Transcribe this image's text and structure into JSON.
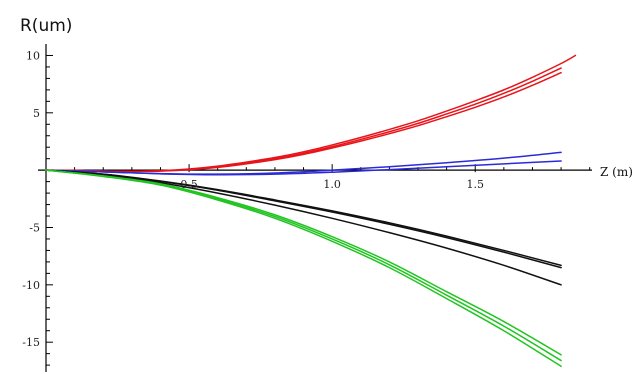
{
  "chart_data": {
    "type": "line",
    "title": "",
    "ylabel": "R(um)",
    "xlabel": "Z (m)",
    "xlim": [
      0,
      1.95
    ],
    "ylim": [
      -17.6,
      11
    ],
    "grid": false,
    "x_ticks": [
      {
        "value": 0.5,
        "label": "0.5"
      },
      {
        "value": 1.0,
        "label": "1.0"
      },
      {
        "value": 1.5,
        "label": "1.5"
      }
    ],
    "x_minor_ticks": [
      0.1,
      0.2,
      0.3,
      0.4,
      0.6,
      0.7,
      0.8,
      0.9,
      1.1,
      1.2,
      1.3,
      1.4,
      1.6,
      1.7,
      1.8,
      1.9
    ],
    "y_ticks": [
      {
        "value": 10,
        "label": "10"
      },
      {
        "value": 5,
        "label": "5"
      },
      {
        "value": -5,
        "label": "-5"
      },
      {
        "value": -10,
        "label": "-10"
      },
      {
        "value": -15,
        "label": "-15"
      }
    ],
    "y_minor_ticks": [
      9,
      8,
      7,
      6,
      4,
      3,
      2,
      1,
      -1,
      -2,
      -3,
      -4,
      -6,
      -7,
      -8,
      -9,
      -11,
      -12,
      -13,
      -14,
      -16,
      -17
    ],
    "series": [
      {
        "color": "#e8141a",
        "x": [
          0,
          0.1,
          0.2,
          0.3,
          0.4,
          0.5,
          0.6,
          0.7,
          0.8,
          0.9,
          1.0,
          1.1,
          1.2,
          1.3,
          1.4,
          1.5,
          1.6,
          1.7,
          1.8,
          1.85
        ],
        "y": [
          0,
          -0.03,
          -0.08,
          -0.1,
          -0.05,
          0.1,
          0.35,
          0.7,
          1.1,
          1.6,
          2.2,
          2.85,
          3.55,
          4.3,
          5.15,
          6.05,
          7.0,
          8.1,
          9.3,
          10.0
        ]
      },
      {
        "color": "#e8141a",
        "x": [
          0,
          0.1,
          0.2,
          0.3,
          0.4,
          0.5,
          0.6,
          0.7,
          0.8,
          0.9,
          1.0,
          1.1,
          1.2,
          1.3,
          1.4,
          1.5,
          1.6,
          1.7,
          1.8
        ],
        "y": [
          0,
          -0.03,
          -0.08,
          -0.1,
          -0.06,
          0.07,
          0.3,
          0.62,
          1.0,
          1.48,
          2.05,
          2.68,
          3.35,
          4.08,
          4.9,
          5.75,
          6.7,
          7.75,
          8.9
        ]
      },
      {
        "color": "#e8141a",
        "x": [
          0,
          0.1,
          0.2,
          0.3,
          0.4,
          0.5,
          0.6,
          0.7,
          0.8,
          0.9,
          1.0,
          1.1,
          1.2,
          1.3,
          1.4,
          1.5,
          1.6,
          1.7,
          1.8
        ],
        "y": [
          0,
          -0.03,
          -0.09,
          -0.11,
          -0.08,
          0.03,
          0.24,
          0.55,
          0.92,
          1.38,
          1.93,
          2.53,
          3.18,
          3.88,
          4.66,
          5.48,
          6.38,
          7.4,
          8.5
        ]
      },
      {
        "color": "#2b2bd6",
        "x": [
          0,
          0.2,
          0.4,
          0.6,
          0.8,
          1.0,
          1.2,
          1.4,
          1.6,
          1.8
        ],
        "y": [
          0,
          -0.15,
          -0.3,
          -0.35,
          -0.25,
          0.0,
          0.3,
          0.65,
          1.05,
          1.55
        ]
      },
      {
        "color": "#2b2bd6",
        "x": [
          0,
          0.2,
          0.4,
          0.6,
          0.8,
          1.0,
          1.2,
          1.4,
          1.6,
          1.8
        ],
        "y": [
          0,
          -0.15,
          -0.32,
          -0.4,
          -0.35,
          -0.18,
          0.05,
          0.3,
          0.55,
          0.8
        ]
      },
      {
        "color": "#111111",
        "x": [
          0,
          0.2,
          0.4,
          0.6,
          0.8,
          1.0,
          1.2,
          1.4,
          1.6,
          1.8
        ],
        "y": [
          0,
          -0.35,
          -0.95,
          -1.7,
          -2.6,
          -3.55,
          -4.6,
          -5.75,
          -7.0,
          -8.3
        ]
      },
      {
        "color": "#111111",
        "x": [
          0,
          0.2,
          0.4,
          0.6,
          0.8,
          1.0,
          1.2,
          1.4,
          1.6,
          1.8
        ],
        "y": [
          0,
          -0.36,
          -0.98,
          -1.75,
          -2.68,
          -3.65,
          -4.72,
          -5.88,
          -7.15,
          -8.5
        ]
      },
      {
        "color": "#111111",
        "x": [
          0,
          0.2,
          0.4,
          0.6,
          0.8,
          1.0,
          1.2,
          1.4,
          1.6,
          1.8
        ],
        "y": [
          0,
          -0.4,
          -1.1,
          -2.0,
          -3.05,
          -4.2,
          -5.45,
          -6.8,
          -8.3,
          -10.0
        ]
      },
      {
        "color": "#22c422",
        "x": [
          0,
          0.2,
          0.4,
          0.6,
          0.8,
          1.0,
          1.2,
          1.4,
          1.6,
          1.8
        ],
        "y": [
          0,
          -0.5,
          -1.2,
          -2.4,
          -3.9,
          -5.8,
          -8.0,
          -10.6,
          -13.2,
          -16.1
        ]
      },
      {
        "color": "#22c422",
        "x": [
          0,
          0.2,
          0.4,
          0.6,
          0.8,
          1.0,
          1.2,
          1.4,
          1.6,
          1.8
        ],
        "y": [
          0,
          -0.52,
          -1.25,
          -2.5,
          -4.05,
          -6.0,
          -8.25,
          -10.9,
          -13.6,
          -16.6
        ]
      },
      {
        "color": "#22c422",
        "x": [
          0,
          0.2,
          0.4,
          0.6,
          0.8,
          1.0,
          1.2,
          1.4,
          1.6,
          1.8
        ],
        "y": [
          0,
          -0.55,
          -1.3,
          -2.6,
          -4.2,
          -6.2,
          -8.5,
          -11.2,
          -14.0,
          -17.1
        ]
      }
    ]
  }
}
